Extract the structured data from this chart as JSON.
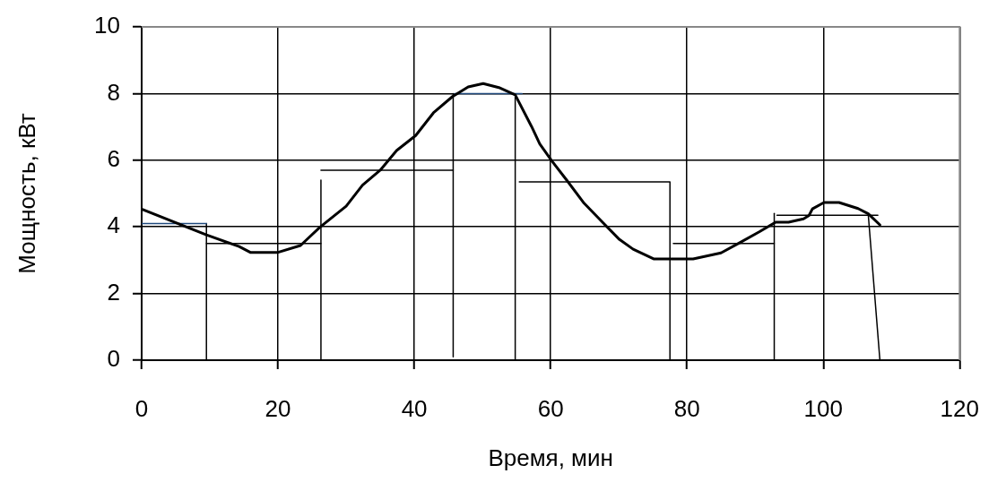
{
  "chart_data": {
    "type": "line",
    "xlabel": "Время, мин",
    "ylabel": "Мощность, кВт",
    "xlim": [
      0,
      120
    ],
    "xticks": [
      0,
      20,
      40,
      60,
      80,
      100,
      120
    ],
    "ylim": [
      0,
      10
    ],
    "yticks": [
      0,
      2,
      4,
      6,
      8,
      10
    ],
    "grid": true,
    "legend": false,
    "marker": "none",
    "line_style": "solid",
    "series": [
      {
        "color": "#000000",
        "x": [
          0,
          9.5,
          14.3,
          16,
          19.9,
          23.3,
          26.1,
          30,
          32.4,
          35,
          37.4,
          40.2,
          42.8,
          45.6,
          47.9,
          50.1,
          52.4,
          54.8,
          57.2,
          58.4,
          60.2,
          62.4,
          64.9,
          67.7,
          70.1,
          72.1,
          75.1,
          80.9,
          85,
          87.8,
          90.6,
          93,
          94.9,
          97.1,
          97.9,
          98.4,
          100.1,
          102.3,
          105.1,
          106.6,
          108.3
        ],
        "values": [
          4.53,
          3.76,
          3.41,
          3.23,
          3.23,
          3.44,
          3.98,
          4.62,
          5.25,
          5.7,
          6.29,
          6.74,
          7.42,
          7.91,
          8.2,
          8.3,
          8.18,
          7.96,
          7.01,
          6.49,
          5.97,
          5.39,
          4.71,
          4.12,
          3.62,
          3.33,
          3.04,
          3.04,
          3.22,
          3.53,
          3.85,
          4.14,
          4.14,
          4.24,
          4.34,
          4.54,
          4.73,
          4.73,
          4.55,
          4.39,
          4.06
        ]
      },
      {
        "color": "#1f497d",
        "x": [
          0,
          9.5
        ],
        "values": [
          4.1,
          4.1
        ]
      },
      {
        "color": "#000000",
        "x": [
          9.5,
          9.5
        ],
        "values": [
          0,
          4.1
        ]
      },
      {
        "color": "#000000",
        "x": [
          9.5,
          26.3
        ],
        "values": [
          3.5,
          3.5
        ]
      },
      {
        "color": "#000000",
        "x": [
          26.3,
          26.3
        ],
        "values": [
          0,
          5.4
        ]
      },
      {
        "color": "#000000",
        "x": [
          26.3,
          45.7
        ],
        "values": [
          5.7,
          5.7
        ]
      },
      {
        "color": "#000000",
        "x": [
          45.7,
          45.7
        ],
        "values": [
          0.1,
          8.0
        ]
      },
      {
        "color": "#1f497d",
        "x": [
          45.9,
          55.8
        ],
        "values": [
          8.0,
          8.0
        ]
      },
      {
        "color": "#000000",
        "x": [
          54.8,
          54.8
        ],
        "values": [
          0,
          7.9
        ]
      },
      {
        "color": "#000000",
        "x": [
          55.4,
          77.5,
          77.5
        ],
        "values": [
          5.35,
          5.35,
          0
        ]
      },
      {
        "color": "#000000",
        "x": [
          78,
          92.8
        ],
        "values": [
          3.5,
          3.5
        ]
      },
      {
        "color": "#000000",
        "x": [
          92.8,
          92.8
        ],
        "values": [
          0,
          4.4
        ]
      },
      {
        "color": "#000000",
        "x": [
          93.2,
          108
        ],
        "values": [
          4.35,
          4.35
        ]
      },
      {
        "color": "#000000",
        "x": [
          106.6,
          108.3
        ],
        "values": [
          4.35,
          0
        ]
      }
    ]
  }
}
